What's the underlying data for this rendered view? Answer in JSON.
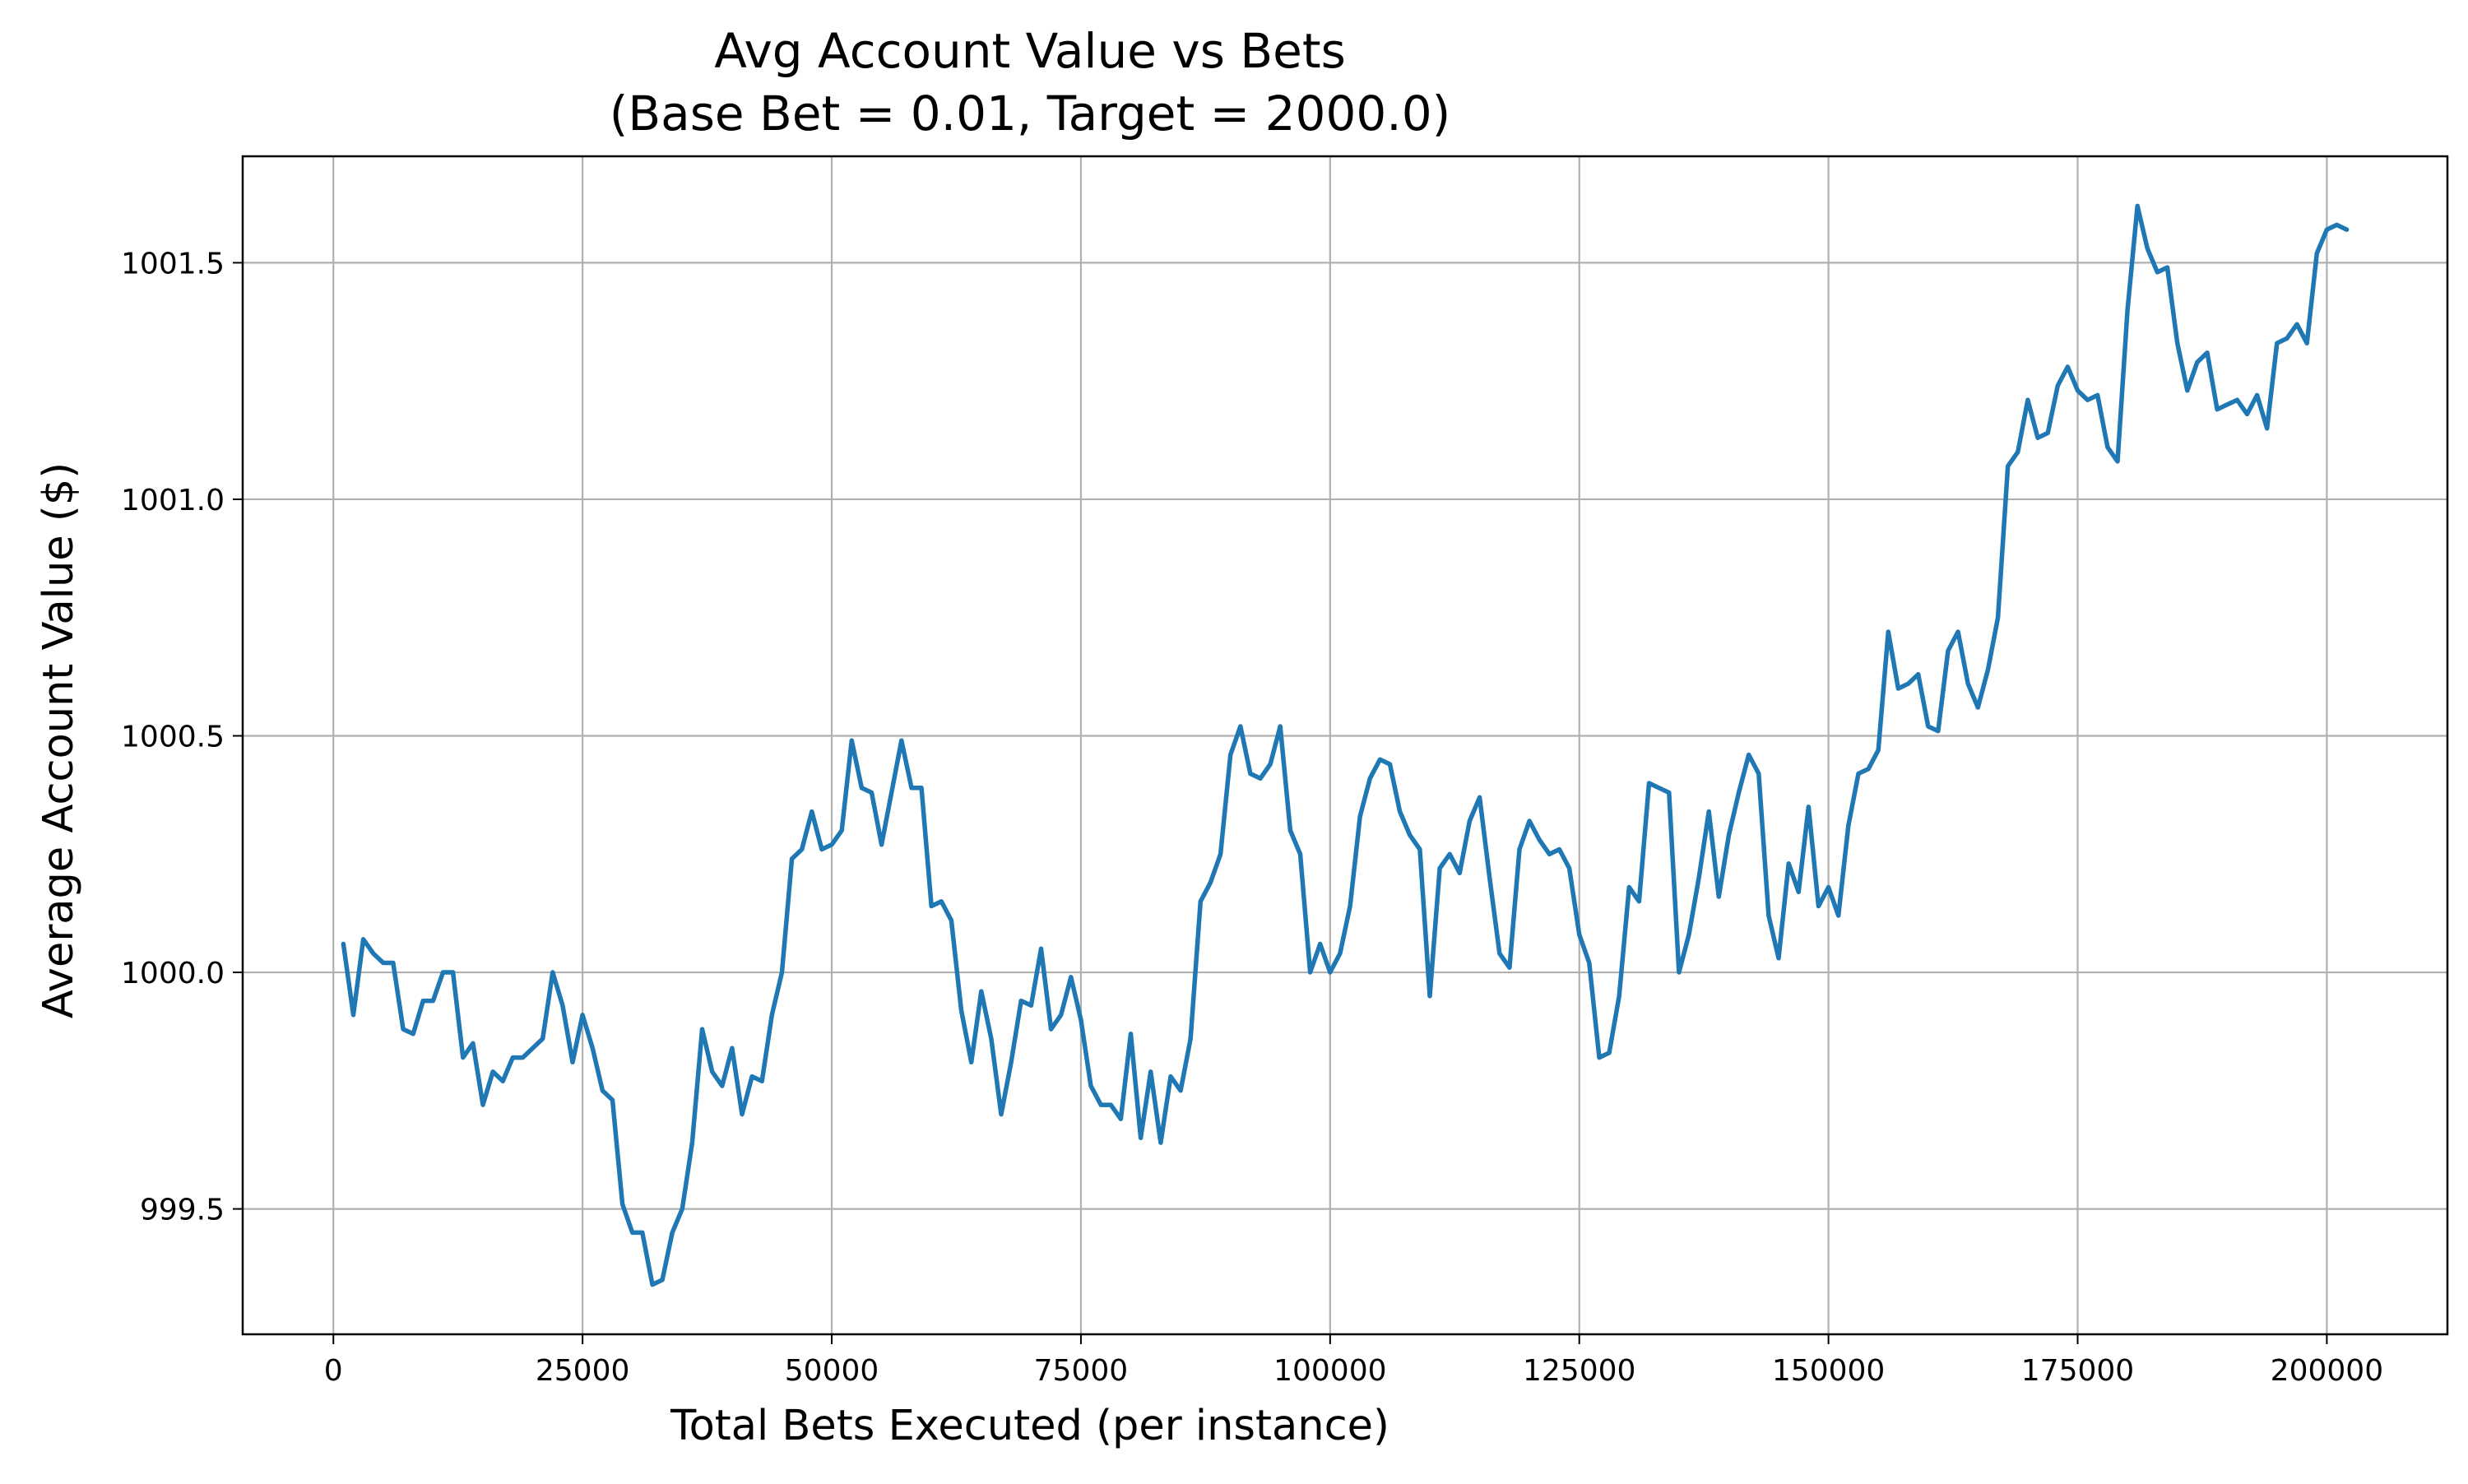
{
  "chart_data": {
    "type": "line",
    "title": "Avg Account Value vs Bets",
    "subtitle": "(Base Bet = 0.01, Target = 2000.0)",
    "xlabel": "Total Bets Executed (per instance)",
    "ylabel": "Average Account Value ($)",
    "xlim": [
      -9100,
      212100
    ],
    "ylim": [
      999.235,
      1001.725
    ],
    "xticks": [
      0,
      25000,
      50000,
      75000,
      100000,
      125000,
      150000,
      175000,
      200000
    ],
    "xtick_labels": [
      "0",
      "25000",
      "50000",
      "75000",
      "100000",
      "125000",
      "150000",
      "175000",
      "200000"
    ],
    "yticks": [
      999.5,
      1000.0,
      1000.5,
      1001.0,
      1001.5
    ],
    "ytick_labels": [
      "999.5",
      "1000.0",
      "1000.5",
      "1001.0",
      "1001.5"
    ],
    "grid": true,
    "colors": {
      "line": "#1f77b4"
    },
    "series": [
      {
        "x": [
          1000,
          2000,
          3000,
          4000,
          5000,
          6000,
          7000,
          8000,
          9000,
          10000,
          11000,
          12000,
          13000,
          14000,
          15000,
          16000,
          17000,
          18000,
          19000,
          20000,
          21000,
          22000,
          23000,
          24000,
          25000,
          26000,
          27000,
          28000,
          29000,
          30000,
          31000,
          32000,
          33000,
          34000,
          35000,
          36000,
          37000,
          38000,
          39000,
          40000,
          41000,
          42000,
          43000,
          44000,
          45000,
          46000,
          47000,
          48000,
          49000,
          50000,
          51000,
          52000,
          53000,
          54000,
          55000,
          56000,
          57000,
          58000,
          59000,
          60000,
          61000,
          62000,
          63000,
          64000,
          65000,
          66000,
          67000,
          68000,
          69000,
          70000,
          71000,
          72000,
          73000,
          74000,
          75000,
          76000,
          77000,
          78000,
          79000,
          80000,
          81000,
          82000,
          83000,
          84000,
          85000,
          86000,
          87000,
          88000,
          89000,
          90000,
          91000,
          92000,
          93000,
          94000,
          95000,
          96000,
          97000,
          98000,
          99000,
          100000,
          101000,
          102000,
          103000,
          104000,
          105000,
          106000,
          107000,
          108000,
          109000,
          110000,
          111000,
          112000,
          113000,
          114000,
          115000,
          116000,
          117000,
          118000,
          119000,
          120000,
          121000,
          122000,
          123000,
          124000,
          125000,
          126000,
          127000,
          128000,
          129000,
          130000,
          131000,
          132000,
          133000,
          134000,
          135000,
          136000,
          137000,
          138000,
          139000,
          140000,
          141000,
          142000,
          143000,
          144000,
          145000,
          146000,
          147000,
          148000,
          149000,
          150000,
          151000,
          152000,
          153000,
          154000,
          155000,
          156000,
          157000,
          158000,
          159000,
          160000,
          161000,
          162000,
          163000,
          164000,
          165000,
          166000,
          167000,
          168000,
          169000,
          170000,
          171000,
          172000,
          173000,
          174000,
          175000,
          176000,
          177000,
          178000,
          179000,
          180000,
          181000,
          182000,
          183000,
          184000,
          185000,
          186000,
          187000,
          188000,
          189000,
          190000,
          191000,
          192000,
          193000,
          194000,
          195000,
          196000,
          197000,
          198000,
          199000,
          200000,
          201000,
          202000
        ],
        "y": [
          1000.06,
          999.91,
          1000.07,
          1000.04,
          1000.02,
          1000.02,
          999.88,
          999.87,
          999.94,
          999.94,
          1000.0,
          1000.0,
          999.82,
          999.85,
          999.72,
          999.79,
          999.77,
          999.82,
          999.82,
          999.84,
          999.86,
          1000.0,
          999.93,
          999.81,
          999.91,
          999.84,
          999.75,
          999.73,
          999.51,
          999.45,
          999.45,
          999.34,
          999.35,
          999.45,
          999.5,
          999.64,
          999.88,
          999.79,
          999.76,
          999.84,
          999.7,
          999.78,
          999.77,
          999.91,
          1000.0,
          1000.24,
          1000.26,
          1000.34,
          1000.26,
          1000.27,
          1000.3,
          1000.49,
          1000.39,
          1000.38,
          1000.27,
          1000.38,
          1000.49,
          1000.39,
          1000.39,
          1000.14,
          1000.15,
          1000.11,
          999.92,
          999.81,
          999.96,
          999.86,
          999.7,
          999.81,
          999.94,
          999.93,
          1000.05,
          999.88,
          999.91,
          999.99,
          999.9,
          999.76,
          999.72,
          999.72,
          999.69,
          999.87,
          999.65,
          999.79,
          999.64,
          999.78,
          999.75,
          999.86,
          1000.15,
          1000.19,
          1000.25,
          1000.46,
          1000.52,
          1000.42,
          1000.41,
          1000.44,
          1000.52,
          1000.3,
          1000.25,
          1000.0,
          1000.06,
          1000.0,
          1000.04,
          1000.14,
          1000.33,
          1000.41,
          1000.45,
          1000.44,
          1000.34,
          1000.29,
          1000.26,
          999.95,
          1000.22,
          1000.25,
          1000.21,
          1000.32,
          1000.37,
          1000.2,
          1000.04,
          1000.01,
          1000.26,
          1000.32,
          1000.28,
          1000.25,
          1000.26,
          1000.22,
          1000.08,
          1000.02,
          999.82,
          999.83,
          999.95,
          1000.18,
          1000.15,
          1000.4,
          1000.39,
          1000.38,
          1000.0,
          1000.08,
          1000.2,
          1000.34,
          1000.16,
          1000.29,
          1000.38,
          1000.46,
          1000.42,
          1000.12,
          1000.03,
          1000.23,
          1000.17,
          1000.35,
          1000.14,
          1000.18,
          1000.12,
          1000.31,
          1000.42,
          1000.43,
          1000.47,
          1000.72,
          1000.6,
          1000.61,
          1000.63,
          1000.52,
          1000.51,
          1000.68,
          1000.72,
          1000.61,
          1000.56,
          1000.64,
          1000.75,
          1001.07,
          1001.1,
          1001.21,
          1001.13,
          1001.14,
          1001.24,
          1001.28,
          1001.23,
          1001.21,
          1001.22,
          1001.11,
          1001.08,
          1001.4,
          1001.62,
          1001.53,
          1001.48,
          1001.49,
          1001.33,
          1001.23,
          1001.29,
          1001.31,
          1001.19,
          1001.2,
          1001.21,
          1001.18,
          1001.22,
          1001.15,
          1001.33,
          1001.34,
          1001.37,
          1001.33,
          1001.52,
          1001.57,
          1001.58,
          1001.57
        ]
      }
    ]
  }
}
